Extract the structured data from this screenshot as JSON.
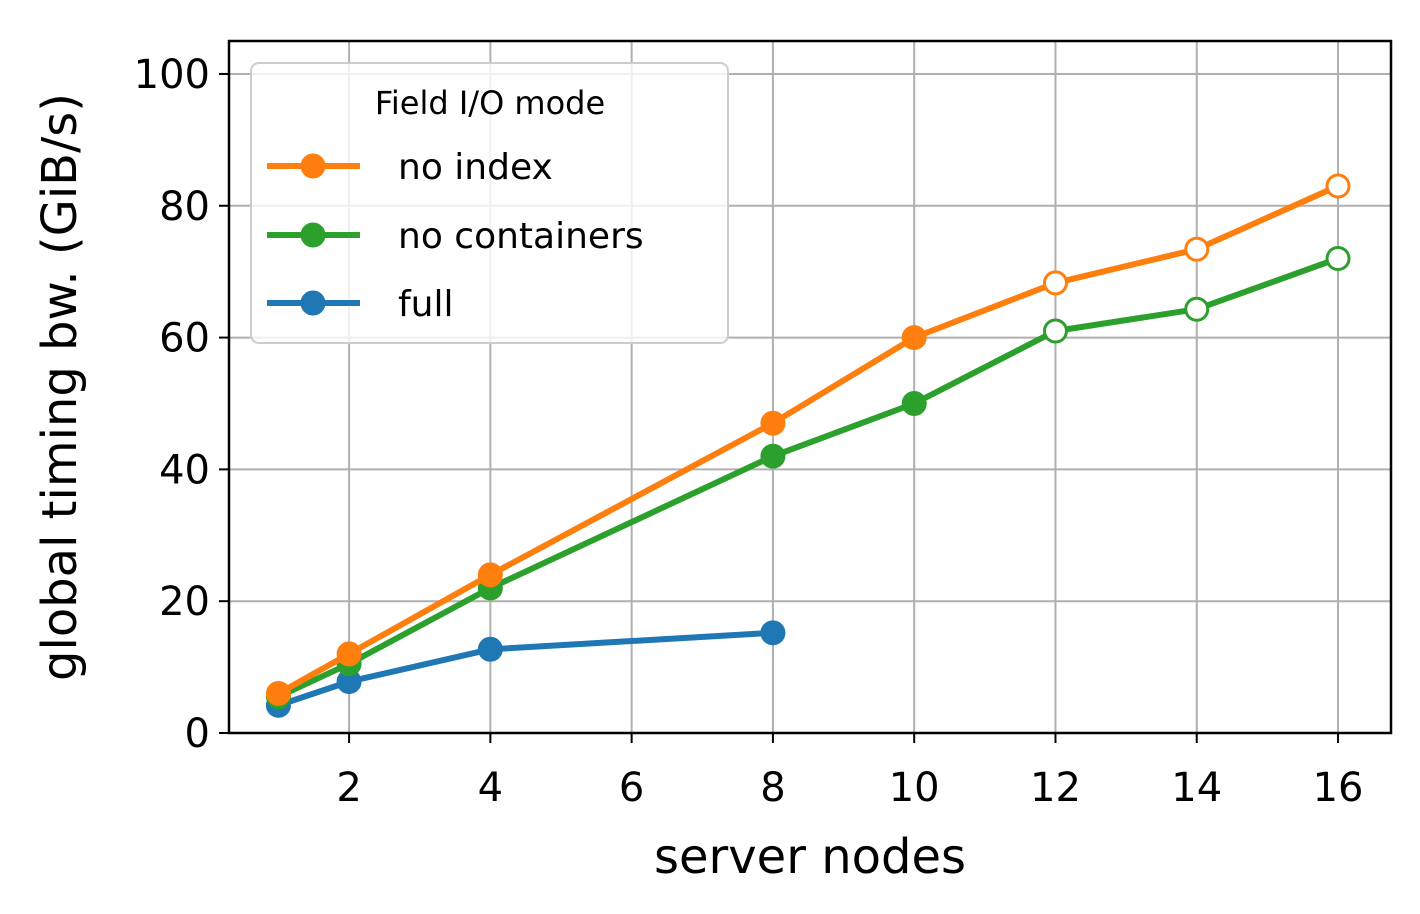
{
  "chart_data": {
    "type": "line",
    "xlabel": "server nodes",
    "ylabel": "global timing bw. (GiB/s)",
    "xlim": [
      0.3,
      16.75
    ],
    "ylim": [
      0,
      105
    ],
    "x_ticks": [
      2,
      4,
      6,
      8,
      10,
      12,
      14,
      16
    ],
    "y_ticks": [
      0,
      20,
      40,
      60,
      80,
      100
    ],
    "grid": true,
    "legend": {
      "title": "Field I/O mode",
      "position": "top-left"
    },
    "series": [
      {
        "name": "no index",
        "color": "#ff7f0e",
        "x": [
          1,
          2,
          4,
          8,
          10,
          12,
          14,
          16
        ],
        "y": [
          6,
          12,
          24,
          47,
          60,
          68.3,
          73.4,
          83
        ],
        "hollow_from_x": 12
      },
      {
        "name": "no containers",
        "color": "#2ca02c",
        "x": [
          1,
          2,
          4,
          8,
          10,
          12,
          14,
          16
        ],
        "y": [
          5.5,
          10.5,
          22,
          42,
          50,
          61,
          64.3,
          72
        ],
        "hollow_from_x": 12
      },
      {
        "name": "full",
        "color": "#1f77b4",
        "x": [
          1,
          2,
          4,
          8
        ],
        "y": [
          4.2,
          7.8,
          12.7,
          15.2
        ]
      }
    ]
  }
}
